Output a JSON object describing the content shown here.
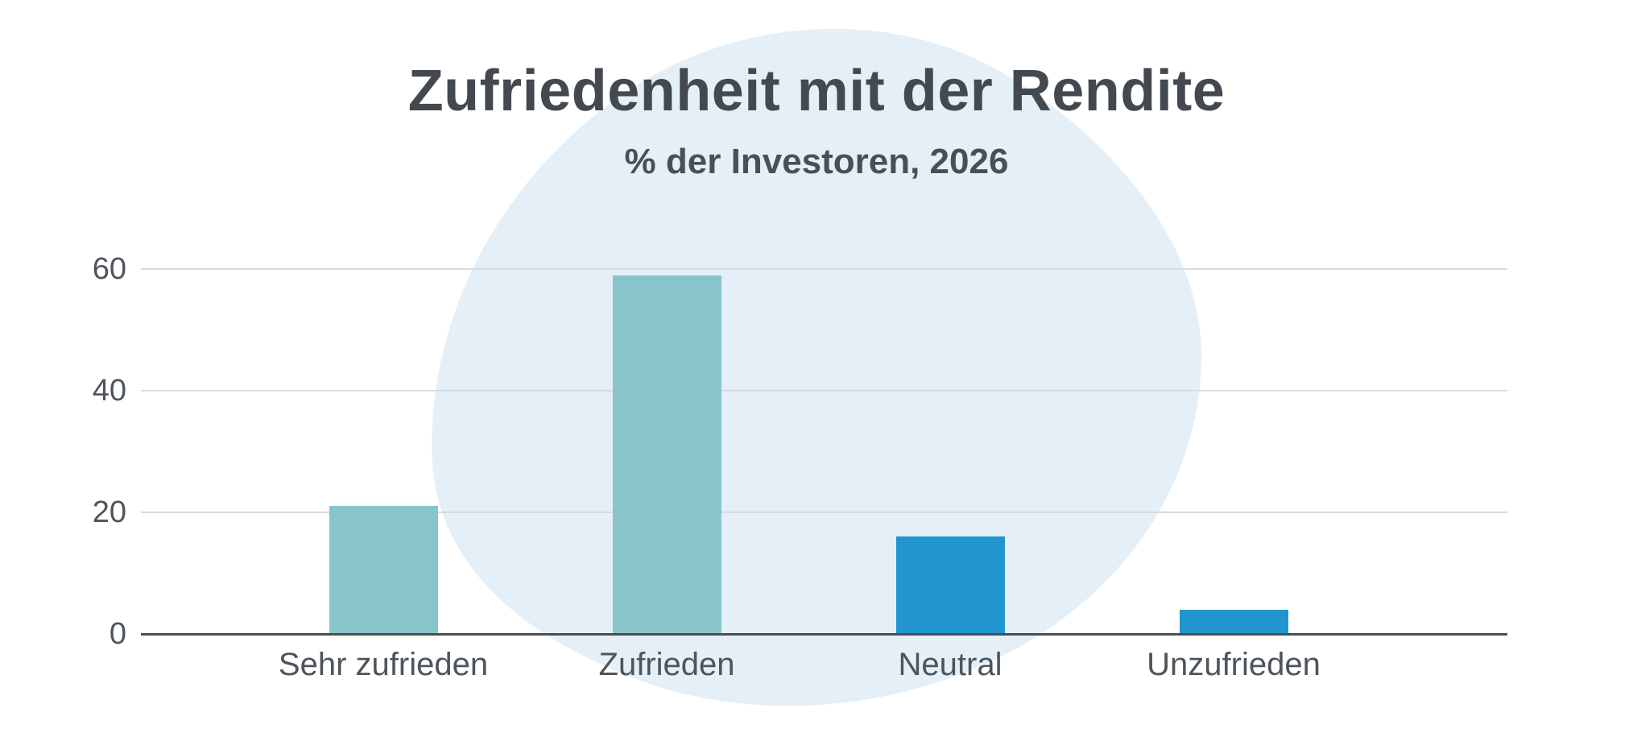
{
  "title": "Zufriedenheit mit der Rendite",
  "subtitle": "% der Investoren, 2026",
  "chart_data": {
    "type": "bar",
    "title": "Zufriedenheit mit der Rendite",
    "subtitle": "% der Investoren, 2026",
    "categories": [
      "Sehr zufrieden",
      "Zufrieden",
      "Neutral",
      "Unzufrieden"
    ],
    "values": [
      21,
      59,
      16,
      4
    ],
    "unit": "%",
    "xlabel": "",
    "ylabel": "",
    "ylim": [
      0,
      60
    ],
    "yticks": [
      0,
      20,
      40,
      60
    ],
    "grid": true,
    "legend": false,
    "bar_colors": [
      "#8AC4CB",
      "#8AC4CB",
      "#2196CE",
      "#2196CE"
    ],
    "annotations": []
  },
  "colors": {
    "teal_bar": "#8AC4CB",
    "blue_bar": "#2196CE",
    "background_blob": "#E4EFF8",
    "gridline": "#D9DBDD",
    "axis_line": "#4A4E52",
    "title_text": "#44494F",
    "label_text": "#4E545B"
  }
}
